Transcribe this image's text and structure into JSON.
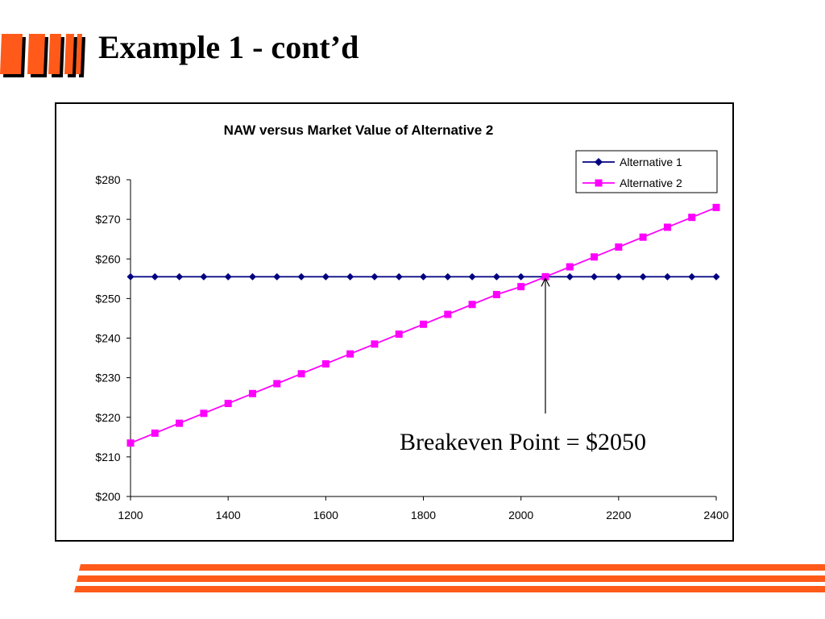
{
  "slide": {
    "title": "Example 1 - cont’d"
  },
  "colors": {
    "accent": "#FF5A1A",
    "series1": "#000080",
    "series2": "#FF00FF"
  },
  "chart_data": {
    "type": "line",
    "title": "NAW versus Market Value of Alternative 2",
    "xlabel": "",
    "ylabel": "",
    "x": [
      1200,
      1250,
      1300,
      1350,
      1400,
      1450,
      1500,
      1550,
      1600,
      1650,
      1700,
      1750,
      1800,
      1850,
      1900,
      1950,
      2000,
      2050,
      2100,
      2150,
      2200,
      2250,
      2300,
      2350,
      2400
    ],
    "xlim": [
      1200,
      2400
    ],
    "ylim": [
      200,
      280
    ],
    "x_ticks": [
      "1200",
      "1400",
      "1600",
      "1800",
      "2000",
      "2200",
      "2400"
    ],
    "y_ticks": [
      "$280",
      "$270",
      "$260",
      "$250",
      "$240",
      "$230",
      "$220",
      "$210",
      "$200"
    ],
    "grid": false,
    "legend_position": "top-right",
    "series": [
      {
        "name": "Alternative 1",
        "marker": "diamond",
        "color": "#000080",
        "values": [
          255.5,
          255.5,
          255.5,
          255.5,
          255.5,
          255.5,
          255.5,
          255.5,
          255.5,
          255.5,
          255.5,
          255.5,
          255.5,
          255.5,
          255.5,
          255.5,
          255.5,
          255.5,
          255.5,
          255.5,
          255.5,
          255.5,
          255.5,
          255.5,
          255.5
        ]
      },
      {
        "name": "Alternative 2",
        "marker": "square",
        "color": "#FF00FF",
        "values": [
          213.5,
          216.0,
          218.5,
          221.0,
          223.5,
          226.0,
          228.5,
          231.0,
          233.5,
          236.0,
          238.5,
          241.0,
          243.5,
          246.0,
          248.5,
          251.0,
          253.0,
          255.5,
          258.0,
          260.5,
          263.0,
          265.5,
          268.0,
          270.5,
          273.0
        ]
      }
    ],
    "annotation": {
      "text": "Breakeven Point = $2050",
      "x": 2050,
      "y": 255.5
    }
  }
}
